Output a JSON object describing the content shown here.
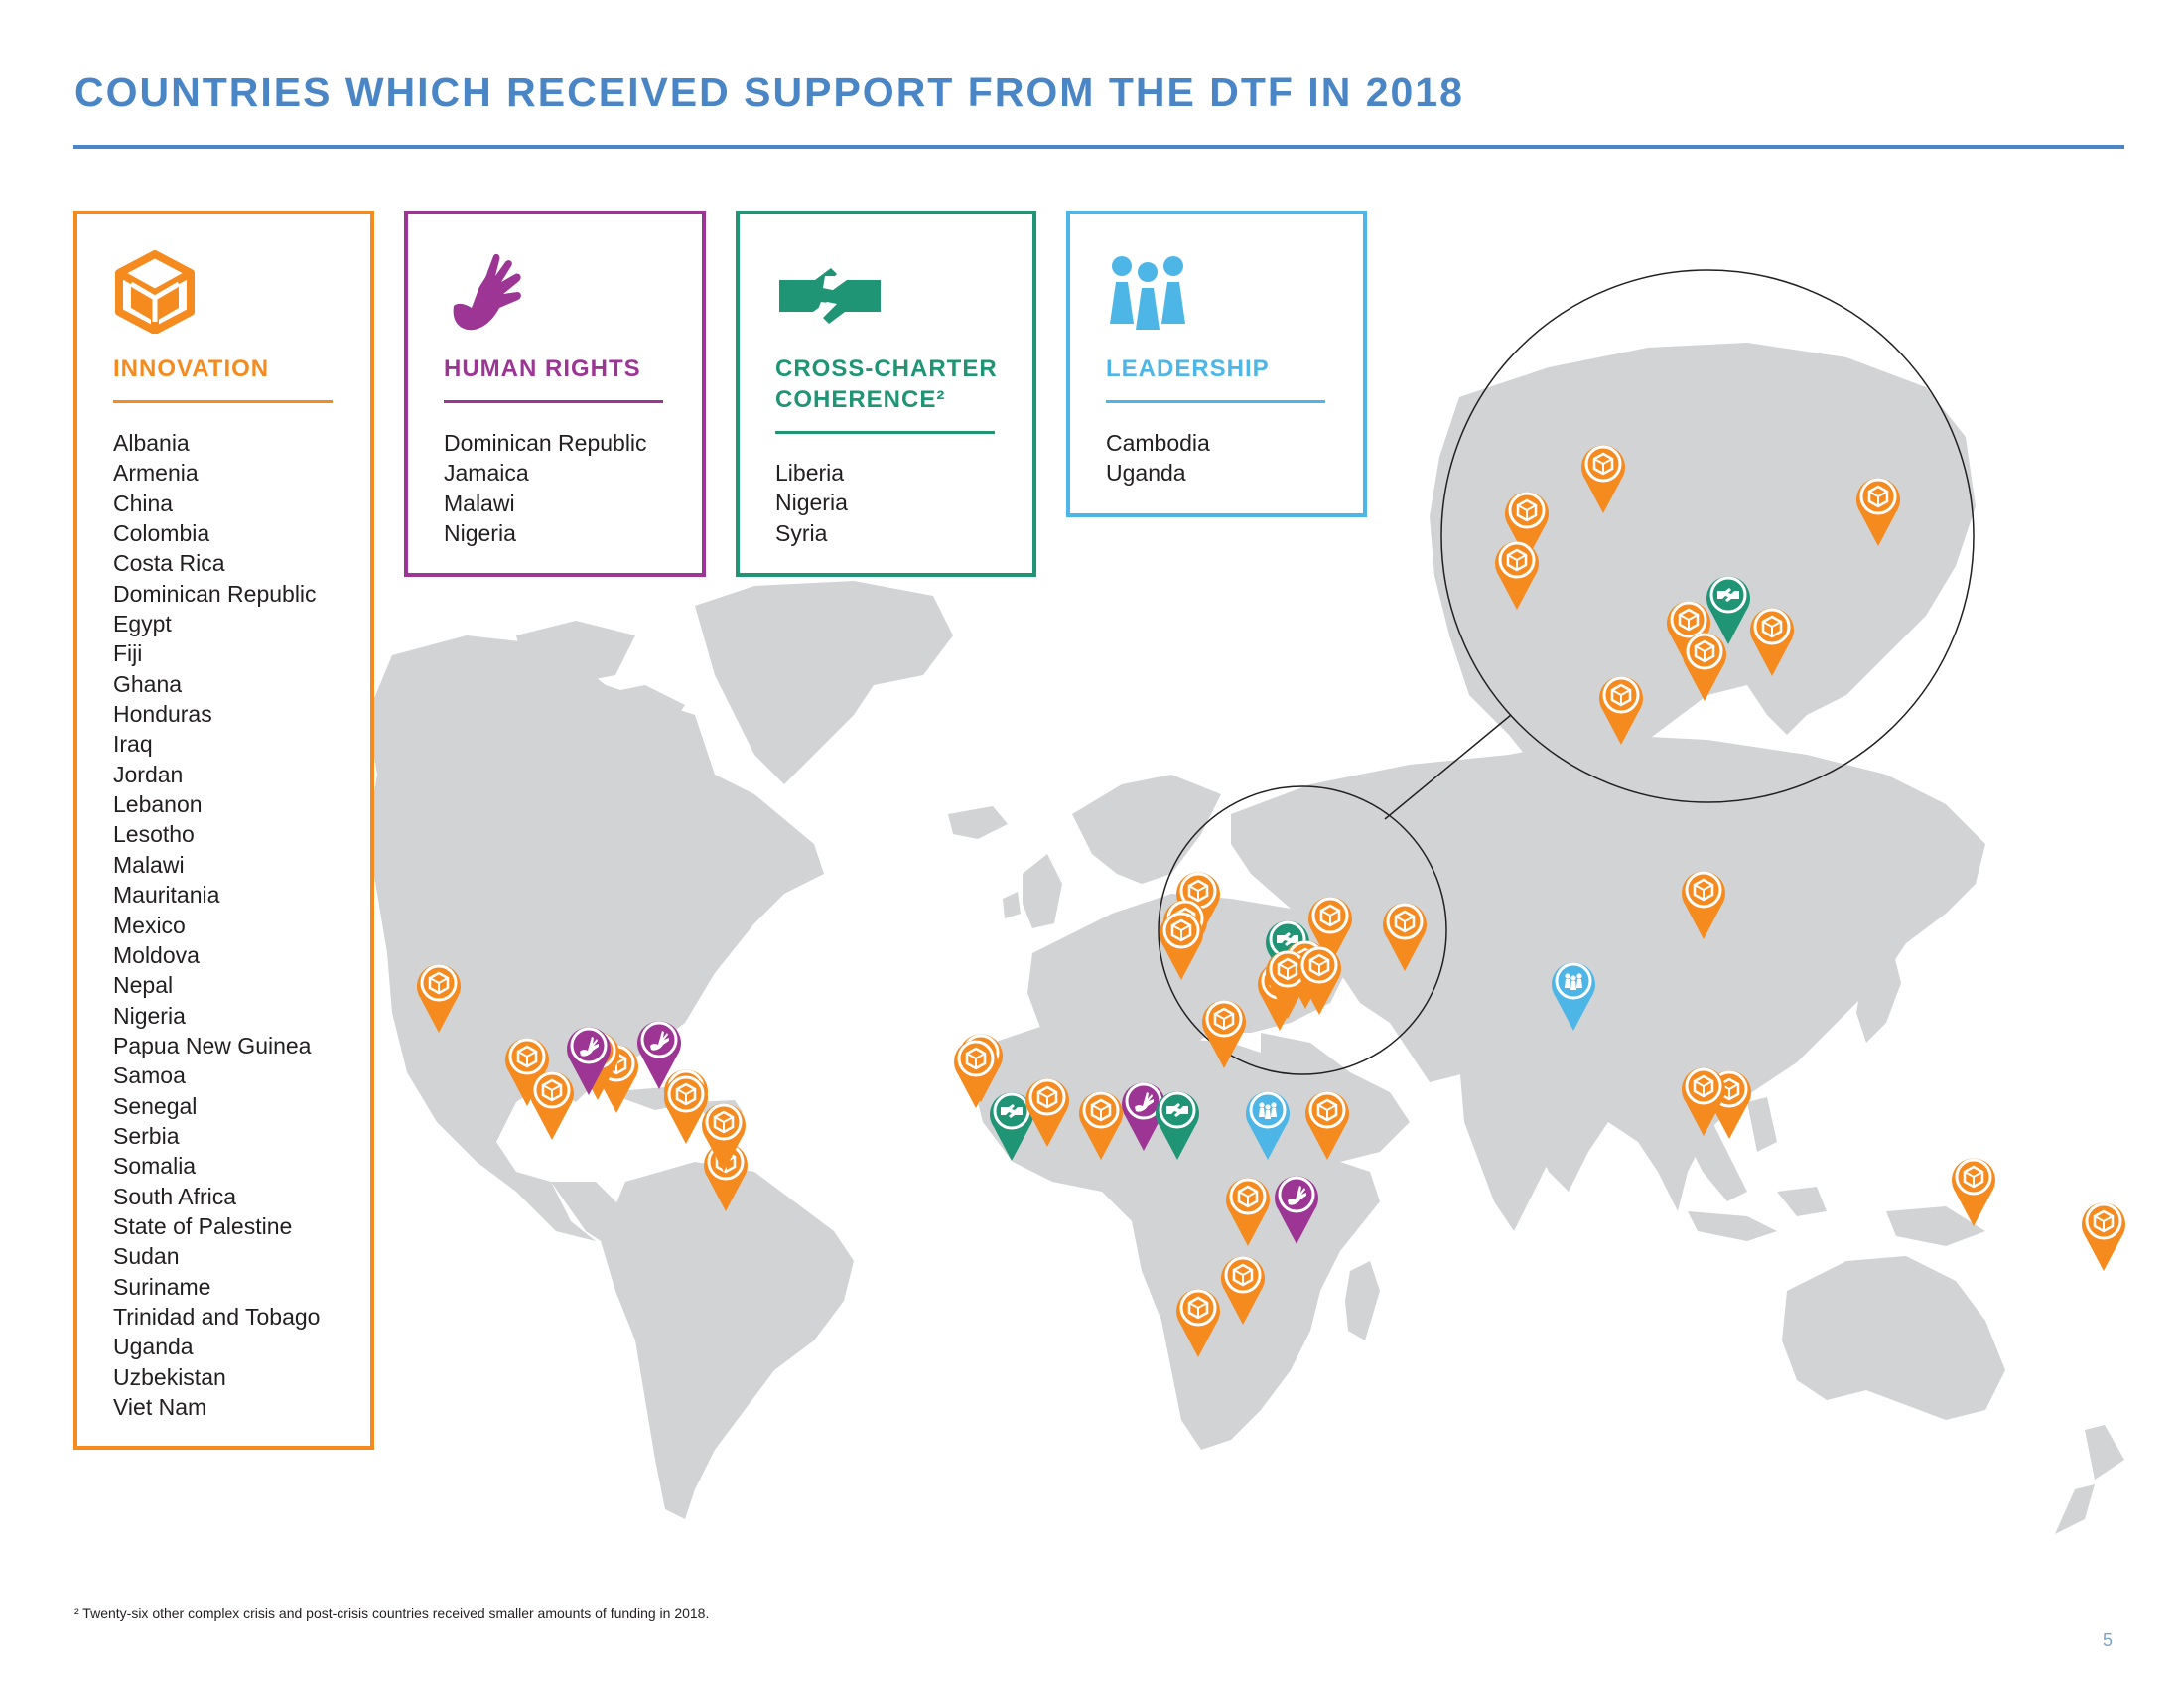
{
  "page": {
    "title": "COUNTRIES WHICH RECEIVED SUPPORT FROM THE DTF IN 2018",
    "footnote": "² Twenty-six other complex crisis and post-crisis countries received smaller amounts of funding in 2018.",
    "page_number": "5"
  },
  "colors": {
    "title": "#4a86c5",
    "innovation": "#f58a1f",
    "human_rights": "#9c3594",
    "cross_charter": "#1f9576",
    "leadership": "#4db6e6",
    "land": "#d1d3d4"
  },
  "legend": {
    "innovation": {
      "heading": "INNOVATION",
      "icon": "cube-icon",
      "countries": [
        "Albania",
        "Armenia",
        "China",
        "Colombia",
        "Costa Rica",
        "Dominican Republic",
        "Egypt",
        "Fiji",
        "Ghana",
        "Honduras",
        "Iraq",
        "Jordan",
        "Lebanon",
        "Lesotho",
        "Malawi",
        "Mauritania",
        "Mexico",
        "Moldova",
        "Nepal",
        "Nigeria",
        "Papua New Guinea",
        "Samoa",
        "Senegal",
        "Serbia",
        "Somalia",
        "South Africa",
        "State of Palestine",
        "Sudan",
        "Suriname",
        "Trinidad and Tobago",
        "Uganda",
        "Uzbekistan",
        "Viet Nam"
      ]
    },
    "human_rights": {
      "heading": "HUMAN RIGHTS",
      "icon": "raised-hand-icon",
      "countries": [
        "Dominican Republic",
        "Jamaica",
        "Malawi",
        "Nigeria"
      ]
    },
    "cross_charter": {
      "heading_line1": "CROSS-CHARTER",
      "heading_line2": "COHERENCE²",
      "icon": "handshake-icon",
      "countries": [
        "Liberia",
        "Nigeria",
        "Syria"
      ]
    },
    "leadership": {
      "heading": "LEADERSHIP",
      "icon": "people-icon",
      "countries": [
        "Cambodia",
        "Uganda"
      ]
    }
  },
  "map": {
    "markers": [
      {
        "type": "innovation",
        "icon": "cube-icon"
      },
      {
        "type": "innovation",
        "icon": "cube-icon"
      },
      {
        "type": "innovation",
        "icon": "cube-icon"
      },
      {
        "type": "innovation",
        "icon": "cube-icon"
      },
      {
        "type": "innovation",
        "icon": "cube-icon"
      },
      {
        "type": "innovation",
        "icon": "cube-icon"
      },
      {
        "type": "innovation",
        "icon": "cube-icon"
      },
      {
        "type": "human_rights",
        "icon": "raised-hand-icon"
      },
      {
        "type": "human_rights",
        "icon": "raised-hand-icon"
      },
      {
        "type": "innovation",
        "icon": "cube-icon"
      },
      {
        "type": "innovation",
        "icon": "cube-icon"
      },
      {
        "type": "innovation",
        "icon": "cube-icon"
      },
      {
        "type": "cross_charter",
        "icon": "handshake-icon"
      },
      {
        "type": "innovation",
        "icon": "cube-icon"
      },
      {
        "type": "innovation",
        "icon": "cube-icon"
      },
      {
        "type": "human_rights",
        "icon": "raised-hand-icon"
      },
      {
        "type": "cross_charter",
        "icon": "handshake-icon"
      },
      {
        "type": "innovation",
        "icon": "cube-icon"
      },
      {
        "type": "leadership",
        "icon": "people-icon"
      },
      {
        "type": "innovation",
        "icon": "cube-icon"
      },
      {
        "type": "innovation",
        "icon": "cube-icon"
      },
      {
        "type": "human_rights",
        "icon": "raised-hand-icon"
      },
      {
        "type": "innovation",
        "icon": "cube-icon"
      },
      {
        "type": "innovation",
        "icon": "cube-icon"
      },
      {
        "type": "innovation",
        "icon": "cube-icon"
      },
      {
        "type": "innovation",
        "icon": "cube-icon"
      },
      {
        "type": "innovation",
        "icon": "cube-icon"
      },
      {
        "type": "innovation",
        "icon": "cube-icon"
      },
      {
        "type": "cross_charter",
        "icon": "handshake-icon"
      },
      {
        "type": "innovation",
        "icon": "cube-icon"
      },
      {
        "type": "innovation",
        "icon": "cube-icon"
      },
      {
        "type": "innovation",
        "icon": "cube-icon"
      },
      {
        "type": "innovation",
        "icon": "cube-icon"
      },
      {
        "type": "innovation",
        "icon": "cube-icon"
      },
      {
        "type": "innovation",
        "icon": "cube-icon"
      },
      {
        "type": "leadership",
        "icon": "people-icon"
      },
      {
        "type": "innovation",
        "icon": "cube-icon"
      },
      {
        "type": "innovation",
        "icon": "cube-icon"
      },
      {
        "type": "innovation",
        "icon": "cube-icon"
      },
      {
        "type": "innovation",
        "icon": "cube-icon"
      },
      {
        "type": "innovation",
        "icon": "cube-icon"
      },
      {
        "type": "innovation",
        "icon": "cube-icon"
      },
      {
        "type": "innovation",
        "icon": "cube-icon"
      },
      {
        "type": "innovation",
        "icon": "cube-icon"
      },
      {
        "type": "innovation",
        "icon": "cube-icon"
      },
      {
        "type": "cross_charter",
        "icon": "handshake-icon"
      },
      {
        "type": "innovation",
        "icon": "cube-icon"
      },
      {
        "type": "innovation",
        "icon": "cube-icon"
      },
      {
        "type": "innovation",
        "icon": "cube-icon"
      },
      {
        "type": "innovation",
        "icon": "cube-icon"
      }
    ]
  }
}
